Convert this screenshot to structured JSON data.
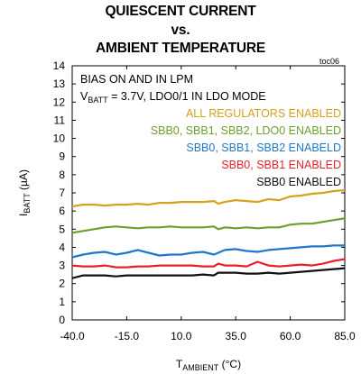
{
  "title": [
    "QUIESCENT CURRENT",
    "vs.",
    "AMBIENT TEMPERATURE"
  ],
  "figure_tag": "toc06",
  "chart_data": {
    "type": "line",
    "ylabel": {
      "main": "I",
      "sub": "BATT",
      "rest": " (µA)"
    },
    "xlabel": {
      "main": "T",
      "sub": "AMBIENT",
      "rest": " (°C)"
    },
    "xlim": [
      -40,
      85
    ],
    "ylim": [
      0,
      14
    ],
    "xticks": [
      -40.0,
      -15.0,
      10.0,
      35.0,
      60.0,
      85.0
    ],
    "xtick_labels": [
      "-40.0",
      "-15.0",
      "10.0",
      "35.0",
      "60.0",
      "85.0"
    ],
    "yticks": [
      0,
      1,
      2,
      3,
      4,
      5,
      6,
      7,
      8,
      9,
      10,
      11,
      12,
      13,
      14
    ],
    "ytick_labels": [
      "0",
      "1",
      "2",
      "3",
      "4",
      "5",
      "6",
      "7",
      "8",
      "9",
      "10",
      "11",
      "12",
      "13",
      "14"
    ],
    "notes": [
      {
        "text": "BIAS ON AND IN LPM"
      },
      {
        "main": "V",
        "sub": "BATT",
        "rest": " = 3.7V, LDO0/1 IN LDO MODE"
      }
    ],
    "series": [
      {
        "name": "ALL REGULATORS ENABLED",
        "color": "#d6a21d",
        "x": [
          -40,
          -35,
          -30,
          -25,
          -20,
          -15,
          -10,
          -5,
          0,
          5,
          10,
          15,
          20,
          25,
          27,
          30,
          35,
          40,
          45,
          50,
          55,
          60,
          65,
          70,
          75,
          80,
          85
        ],
        "y": [
          6.25,
          6.35,
          6.35,
          6.3,
          6.35,
          6.35,
          6.4,
          6.35,
          6.45,
          6.45,
          6.5,
          6.5,
          6.5,
          6.55,
          6.4,
          6.5,
          6.6,
          6.55,
          6.5,
          6.65,
          6.6,
          6.8,
          6.85,
          6.95,
          7.0,
          7.1,
          7.15
        ]
      },
      {
        "name": "SBB0, SBB1, SBB2, LDO0 ENABLED",
        "color": "#6f9e2f",
        "x": [
          -40,
          -35,
          -30,
          -25,
          -20,
          -15,
          -10,
          -5,
          0,
          5,
          10,
          15,
          20,
          25,
          27,
          30,
          35,
          40,
          45,
          50,
          55,
          60,
          65,
          70,
          75,
          80,
          85
        ],
        "y": [
          4.8,
          4.9,
          5.0,
          5.1,
          5.15,
          5.1,
          5.05,
          5.1,
          5.1,
          5.15,
          5.1,
          5.1,
          5.1,
          5.15,
          5.0,
          5.1,
          5.05,
          5.1,
          5.05,
          5.1,
          5.1,
          5.25,
          5.3,
          5.3,
          5.4,
          5.5,
          5.6
        ]
      },
      {
        "name": "SBB0, SBB1, SBB2 ENABELD",
        "color": "#1f77c8",
        "x": [
          -40,
          -35,
          -30,
          -25,
          -20,
          -15,
          -10,
          -5,
          0,
          5,
          10,
          15,
          20,
          25,
          27,
          30,
          35,
          40,
          45,
          50,
          55,
          60,
          65,
          70,
          75,
          80,
          85
        ],
        "y": [
          3.45,
          3.6,
          3.7,
          3.75,
          3.6,
          3.7,
          3.85,
          3.7,
          3.55,
          3.6,
          3.6,
          3.7,
          3.75,
          3.6,
          3.7,
          3.85,
          3.9,
          3.8,
          3.75,
          3.85,
          3.9,
          3.95,
          4.0,
          4.05,
          4.05,
          4.1,
          4.1
        ]
      },
      {
        "name": "SBB0, SBB1 ENABLED",
        "color": "#e8202a",
        "x": [
          -40,
          -35,
          -30,
          -25,
          -20,
          -15,
          -10,
          -5,
          0,
          5,
          10,
          15,
          20,
          25,
          27,
          30,
          35,
          40,
          45,
          50,
          55,
          60,
          65,
          70,
          75,
          80,
          85
        ],
        "y": [
          3.0,
          2.95,
          2.95,
          3.0,
          2.9,
          2.9,
          2.95,
          2.95,
          3.0,
          3.0,
          3.0,
          3.0,
          2.95,
          2.95,
          3.1,
          3.0,
          3.0,
          2.95,
          3.2,
          3.0,
          2.95,
          3.0,
          3.05,
          3.0,
          3.1,
          3.25,
          3.35
        ]
      },
      {
        "name": "SBB0 ENABLED",
        "color": "#111111",
        "x": [
          -40,
          -35,
          -30,
          -25,
          -20,
          -15,
          -10,
          -5,
          0,
          5,
          10,
          15,
          20,
          25,
          27,
          30,
          35,
          40,
          45,
          50,
          55,
          60,
          65,
          70,
          75,
          80,
          85
        ],
        "y": [
          2.3,
          2.45,
          2.45,
          2.45,
          2.4,
          2.45,
          2.45,
          2.45,
          2.45,
          2.45,
          2.45,
          2.45,
          2.5,
          2.45,
          2.6,
          2.6,
          2.6,
          2.55,
          2.55,
          2.6,
          2.55,
          2.6,
          2.65,
          2.7,
          2.75,
          2.8,
          2.85
        ]
      }
    ]
  }
}
